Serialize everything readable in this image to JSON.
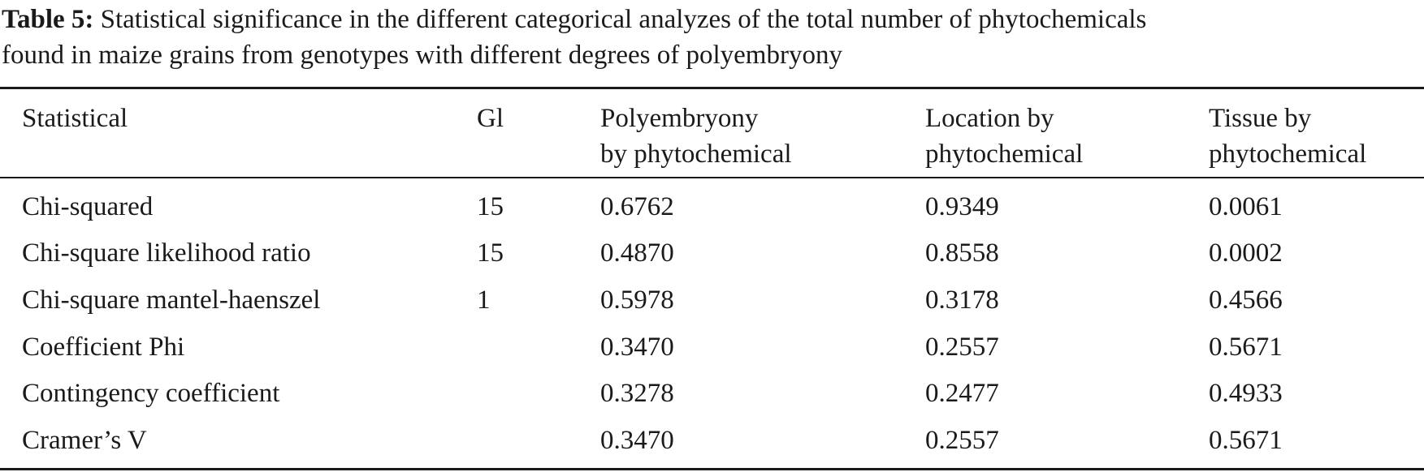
{
  "caption": {
    "label": "Table 5:",
    "line1": "Statistical significance in the different categorical analyzes of the total number of phytochemicals",
    "line2": "found in maize grains from genotypes with different degrees of polyembryony"
  },
  "table": {
    "headers": [
      [
        "Statistical",
        ""
      ],
      [
        "Gl",
        ""
      ],
      [
        "Polyembryony",
        "by phytochemical"
      ],
      [
        "Location by",
        "phytochemical"
      ],
      [
        "Tissue by",
        "phytochemical"
      ]
    ],
    "rows": [
      [
        "Chi-squared",
        "15",
        "0.6762",
        "0.9349",
        "0.0061"
      ],
      [
        "Chi-square likelihood ratio",
        "15",
        "0.4870",
        "0.8558",
        "0.0002"
      ],
      [
        "Chi-square mantel-haenszel",
        "1",
        "0.5978",
        "0.3178",
        "0.4566"
      ],
      [
        "Coefficient Phi",
        "",
        "0.3470",
        "0.2557",
        "0.5671"
      ],
      [
        "Contingency coefficient",
        "",
        "0.3278",
        "0.2477",
        "0.4933"
      ],
      [
        "Cramer’s V",
        "",
        "0.3470",
        "0.2557",
        "0.5671"
      ]
    ]
  }
}
